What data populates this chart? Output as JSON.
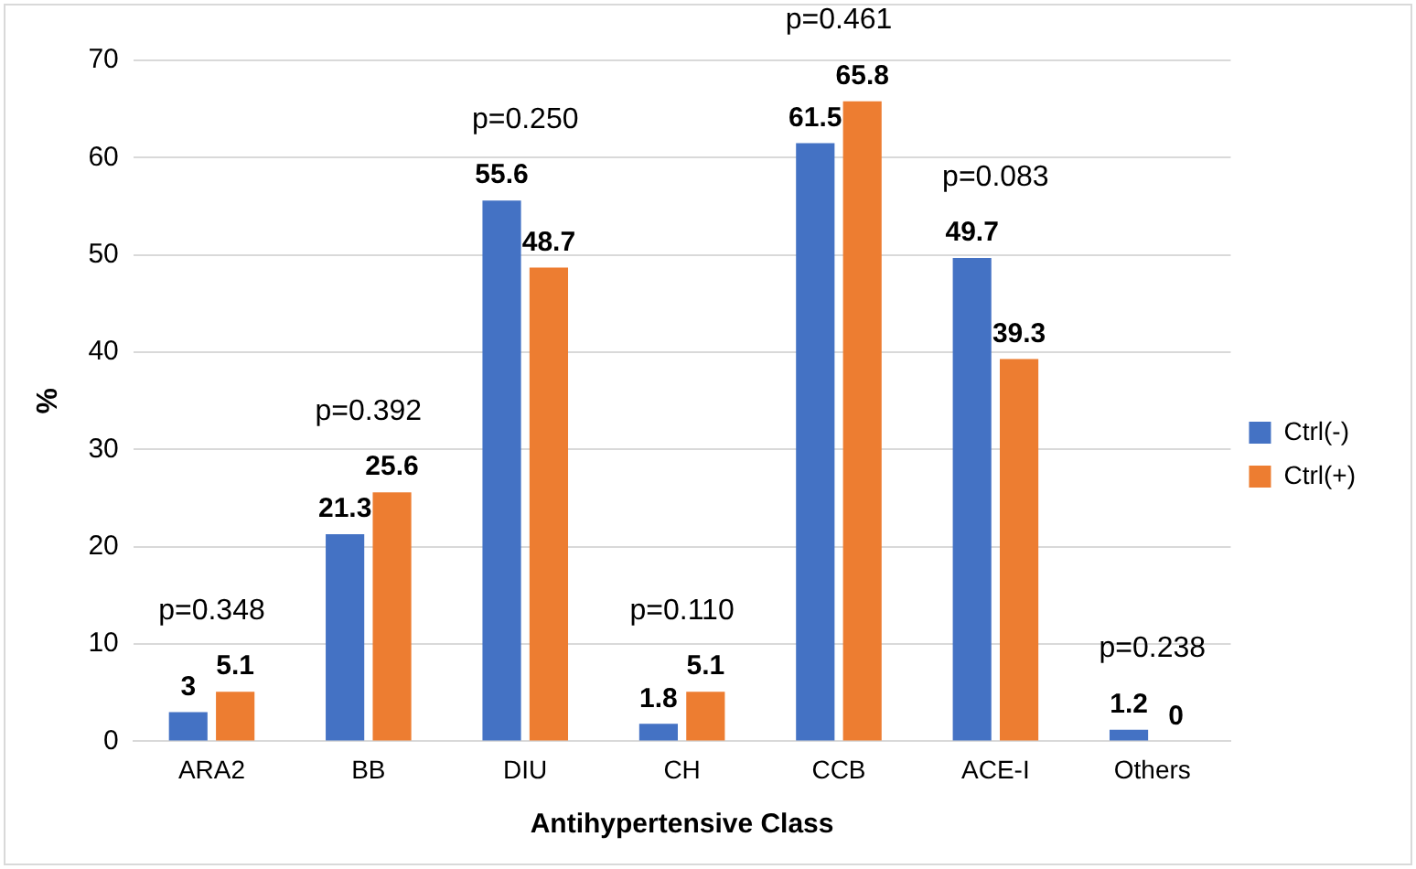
{
  "chart_data": {
    "type": "bar",
    "xlabel": "Antihypertensive Class",
    "ylabel": "%",
    "categories": [
      "ARA2",
      "BB",
      "DIU",
      "CH",
      "CCB",
      "ACE-I",
      "Others"
    ],
    "series": [
      {
        "name": "Ctrl(-)",
        "color": "#4472c4",
        "values": [
          3,
          21.3,
          55.6,
          1.8,
          61.5,
          49.7,
          1.2
        ]
      },
      {
        "name": "Ctrl(+)",
        "color": "#ed7d31",
        "values": [
          5.1,
          25.6,
          48.7,
          5.1,
          65.8,
          39.3,
          0
        ]
      }
    ],
    "ylim": [
      0,
      70
    ],
    "yticks": [
      0,
      10,
      20,
      30,
      40,
      50,
      60,
      70
    ],
    "grid": "y",
    "legend": "right",
    "data_labels": true,
    "annotations": [
      "p=0.348",
      "p=0.392",
      "p=0.250",
      "p=0.110",
      "p=0.461",
      "p=0.083",
      "p=0.238"
    ]
  }
}
